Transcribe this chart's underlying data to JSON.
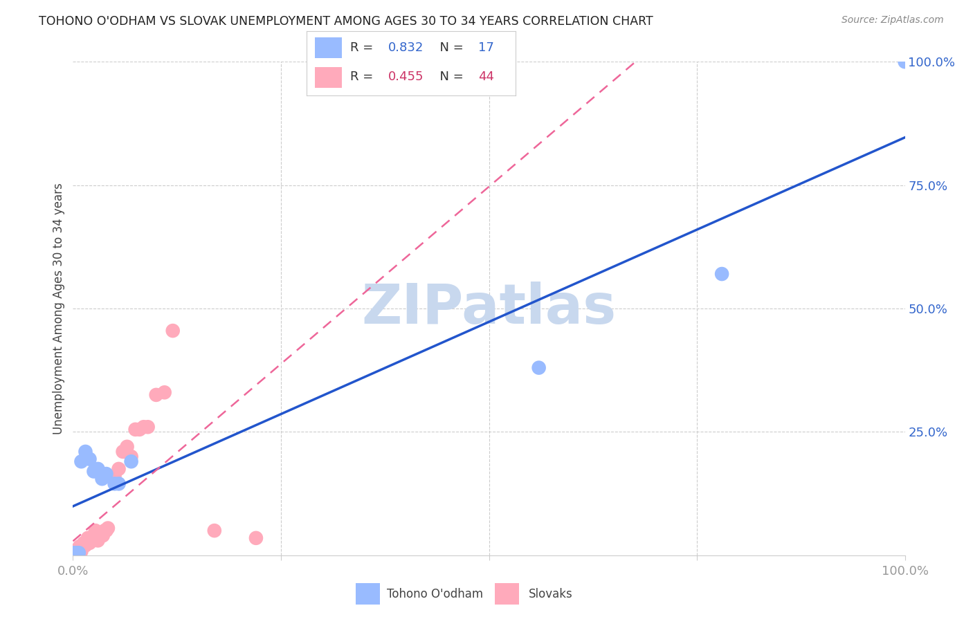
{
  "title": "TOHONO O'ODHAM VS SLOVAK UNEMPLOYMENT AMONG AGES 30 TO 34 YEARS CORRELATION CHART",
  "source": "Source: ZipAtlas.com",
  "ylabel": "Unemployment Among Ages 30 to 34 years",
  "xlim": [
    0,
    1.0
  ],
  "ylim": [
    0,
    1.0
  ],
  "background_color": "#ffffff",
  "grid_color": "#cccccc",
  "watermark_text": "ZIPatlas",
  "watermark_color": "#c8d8ee",
  "tohono_color": "#99bbff",
  "slovak_color": "#ffaabb",
  "tohono_line_color": "#2255cc",
  "slovak_line_color": "#ee6699",
  "R_tohono": 0.832,
  "N_tohono": 17,
  "R_slovak": 0.455,
  "N_slovak": 44,
  "tick_color": "#3366cc",
  "xtick_color": "#999999",
  "tohono_x": [
    0.0,
    0.003,
    0.005,
    0.007,
    0.01,
    0.015,
    0.02,
    0.025,
    0.03,
    0.035,
    0.04,
    0.05,
    0.055,
    0.07,
    0.56,
    0.78,
    1.0
  ],
  "tohono_y": [
    0.005,
    0.005,
    0.005,
    0.005,
    0.19,
    0.21,
    0.195,
    0.17,
    0.175,
    0.155,
    0.165,
    0.145,
    0.145,
    0.19,
    0.38,
    0.57,
    1.0
  ],
  "slovak_x": [
    0.0,
    0.0,
    0.0,
    0.0,
    0.002,
    0.003,
    0.004,
    0.005,
    0.006,
    0.007,
    0.008,
    0.01,
    0.01,
    0.012,
    0.013,
    0.015,
    0.016,
    0.017,
    0.018,
    0.02,
    0.022,
    0.025,
    0.027,
    0.03,
    0.032,
    0.034,
    0.036,
    0.038,
    0.04,
    0.042,
    0.05,
    0.055,
    0.06,
    0.065,
    0.07,
    0.075,
    0.08,
    0.085,
    0.09,
    0.1,
    0.11,
    0.12,
    0.17,
    0.22
  ],
  "slovak_y": [
    0.002,
    0.004,
    0.006,
    0.008,
    0.005,
    0.005,
    0.008,
    0.01,
    0.012,
    0.015,
    0.018,
    0.008,
    0.015,
    0.02,
    0.025,
    0.02,
    0.025,
    0.03,
    0.035,
    0.025,
    0.03,
    0.04,
    0.05,
    0.03,
    0.04,
    0.04,
    0.04,
    0.05,
    0.05,
    0.055,
    0.16,
    0.175,
    0.21,
    0.22,
    0.2,
    0.255,
    0.255,
    0.26,
    0.26,
    0.325,
    0.33,
    0.455,
    0.05,
    0.035
  ]
}
